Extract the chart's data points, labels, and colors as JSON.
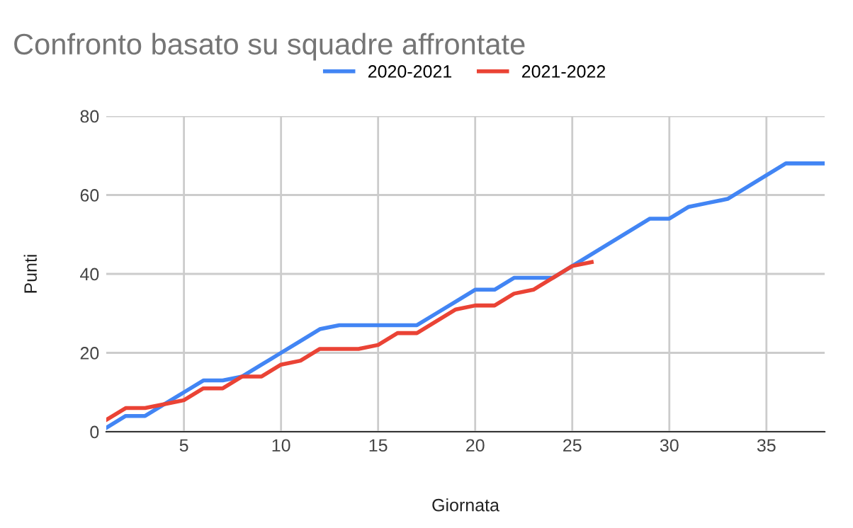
{
  "chart_data": {
    "type": "line",
    "title": "Confronto basato su squadre affrontate",
    "xlabel": "Giornata",
    "ylabel": "Punti",
    "xlim": [
      1,
      38
    ],
    "xticks": [
      5,
      10,
      15,
      20,
      25,
      30,
      35
    ],
    "ylim": [
      0,
      80
    ],
    "yticks": [
      0,
      20,
      40,
      60,
      80
    ],
    "grid": true,
    "legend": "top",
    "series": [
      {
        "name": "2020-2021",
        "color": "#4285f4",
        "x": [
          1,
          2,
          3,
          4,
          5,
          6,
          7,
          8,
          9,
          10,
          11,
          12,
          13,
          14,
          15,
          16,
          17,
          18,
          19,
          20,
          21,
          22,
          23,
          24,
          25,
          26,
          27,
          28,
          29,
          30,
          31,
          32,
          33,
          34,
          35,
          36,
          37,
          38
        ],
        "values": [
          1,
          4,
          4,
          7,
          10,
          13,
          13,
          14,
          17,
          20,
          23,
          26,
          27,
          27,
          27,
          27,
          27,
          30,
          33,
          36,
          36,
          39,
          39,
          39,
          42,
          45,
          48,
          51,
          54,
          54,
          57,
          58,
          59,
          62,
          65,
          68,
          68,
          68
        ]
      },
      {
        "name": "2021-2022",
        "color": "#ea4335",
        "x": [
          1,
          2,
          3,
          4,
          5,
          6,
          7,
          8,
          9,
          10,
          11,
          12,
          13,
          14,
          15,
          16,
          17,
          18,
          19,
          20,
          21,
          22,
          23,
          24,
          25,
          26
        ],
        "values": [
          3,
          6,
          6,
          7,
          8,
          11,
          11,
          14,
          14,
          17,
          18,
          21,
          21,
          21,
          22,
          25,
          25,
          28,
          31,
          32,
          32,
          35,
          36,
          39,
          42,
          43
        ]
      }
    ]
  }
}
